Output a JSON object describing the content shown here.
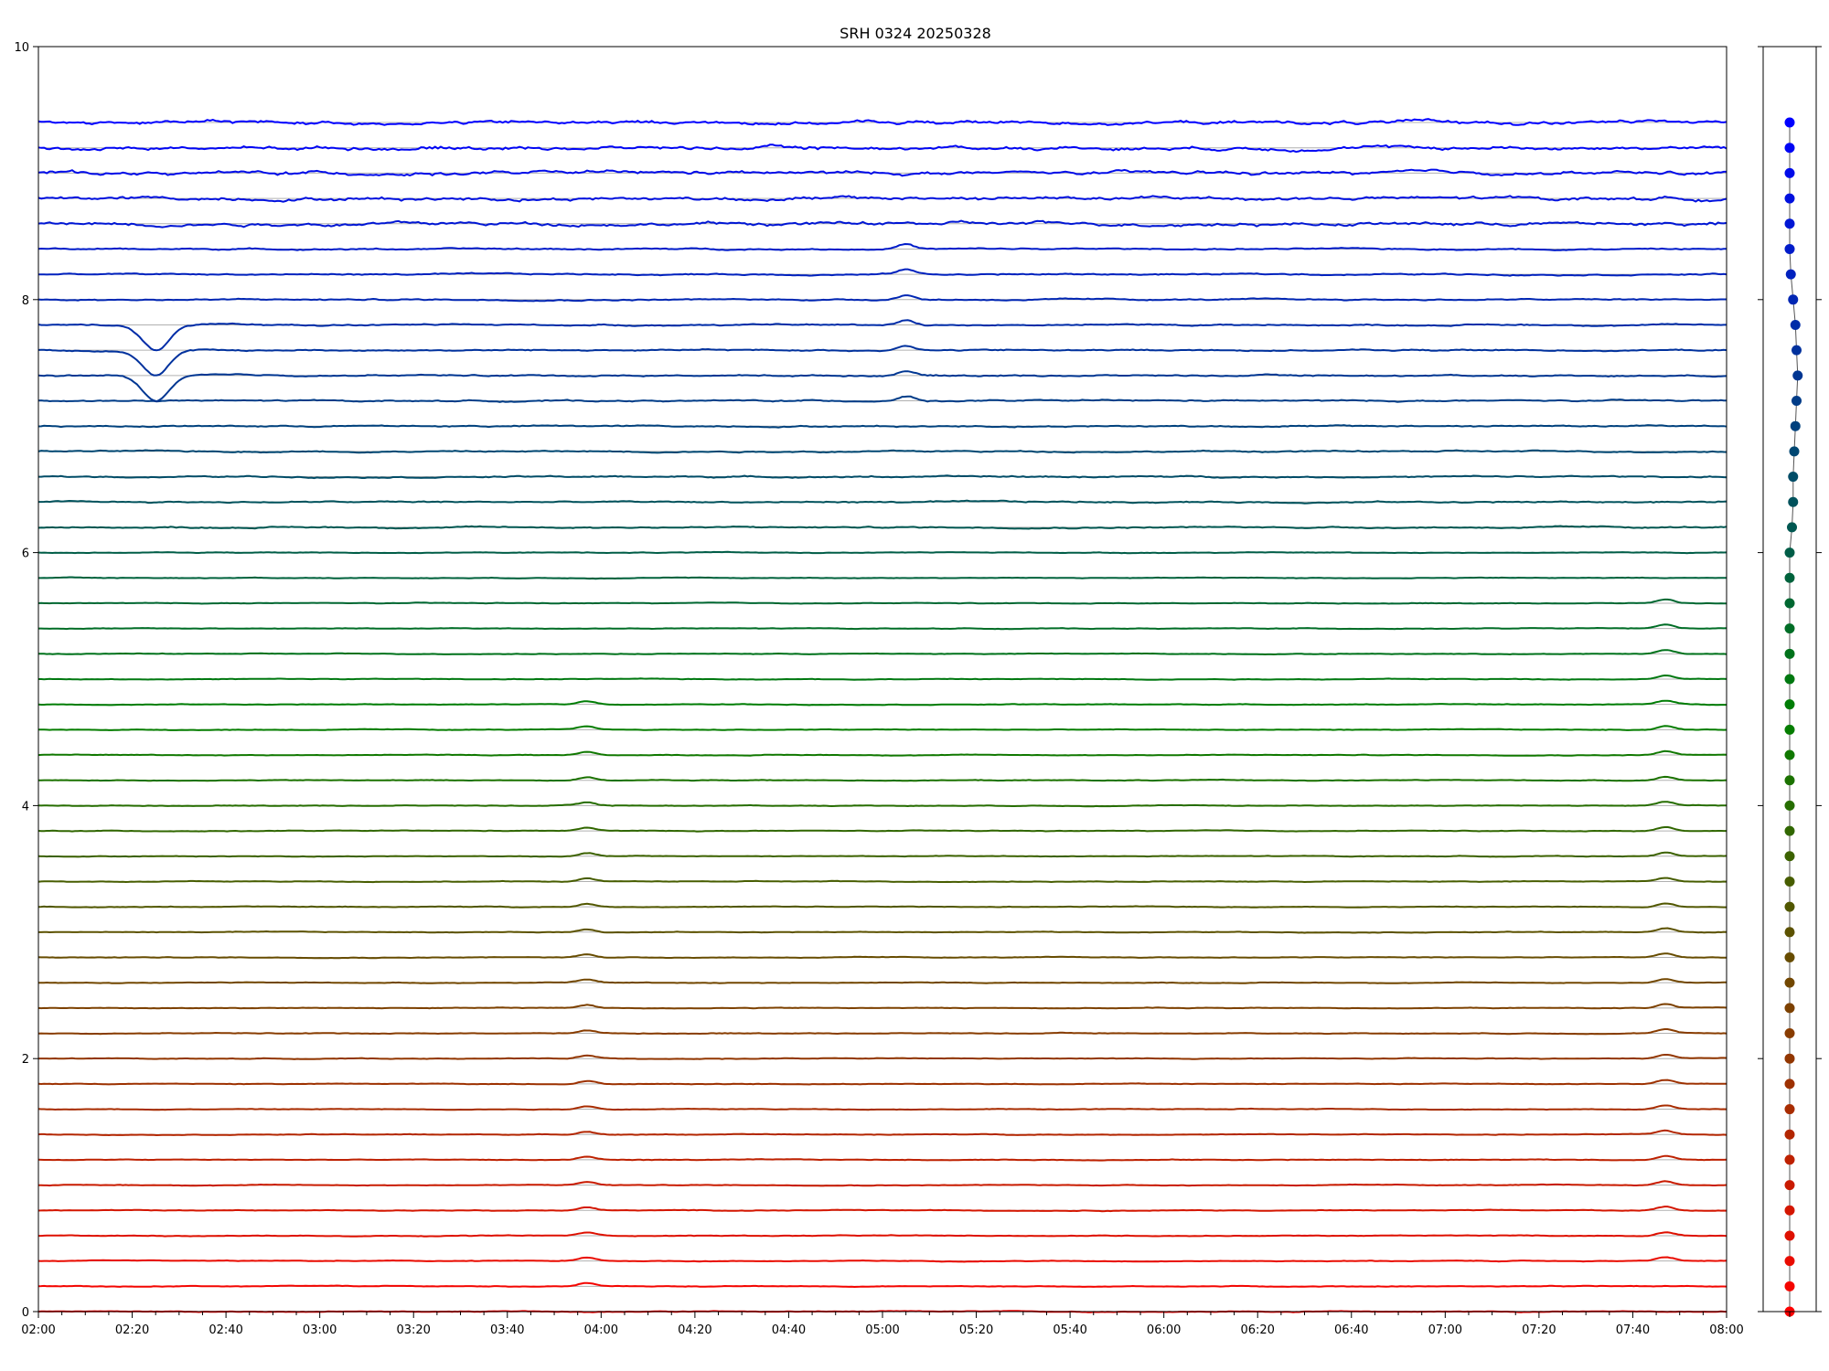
{
  "chart_data": [
    {
      "type": "line",
      "title": "SRH 0324 20250328",
      "xlabel": "",
      "ylabel": "",
      "xlim": [
        "02:00",
        "08:00"
      ],
      "ylim": [
        0,
        10
      ],
      "grid": "horizontal baselines",
      "x_ticks": [
        "02:00",
        "02:20",
        "02:40",
        "03:00",
        "03:20",
        "03:40",
        "04:00",
        "04:20",
        "04:40",
        "05:00",
        "05:20",
        "05:40",
        "06:00",
        "06:20",
        "06:40",
        "07:00",
        "07:20",
        "07:40",
        "08:00"
      ],
      "y_ticks": [
        "0",
        "2",
        "4",
        "6",
        "8",
        "10"
      ],
      "trace_count": 48,
      "trace_spacing": 0.2,
      "trace_color_low": "#ff0000",
      "trace_color_mid": "#008000",
      "trace_color_high": "#0000ff",
      "features": [
        {
          "time": "03:57",
          "traces_from": 1,
          "traces_to": 24,
          "amplitude": 0.025
        },
        {
          "time": "05:05",
          "traces_from": 36,
          "traces_to": 42,
          "amplitude": 0.04
        },
        {
          "time": "07:47",
          "traces_from": 2,
          "traces_to": 28,
          "amplitude": 0.03
        },
        {
          "time": "02:25",
          "traces_from": 37,
          "traces_to": 39,
          "amplitude": -0.2
        }
      ]
    },
    {
      "type": "scatter",
      "title": "",
      "ylim": [
        0,
        10
      ],
      "points_y": [
        0.0,
        0.2,
        0.4,
        0.6,
        0.8,
        1.0,
        1.2,
        1.4,
        1.6,
        1.8,
        2.0,
        2.2,
        2.4,
        2.6,
        2.8,
        3.0,
        3.2,
        3.4,
        3.6,
        3.8,
        4.0,
        4.2,
        4.4,
        4.6,
        4.8,
        5.0,
        5.2,
        5.4,
        5.6,
        5.8,
        6.0,
        6.2,
        6.4,
        6.6,
        6.8,
        7.0,
        7.2,
        7.4,
        7.6,
        7.8,
        8.0,
        8.2,
        8.4,
        8.6,
        8.8,
        9.0,
        9.2,
        9.4
      ],
      "points_x": [
        0,
        0,
        0,
        0,
        0,
        0,
        0,
        0,
        0,
        0,
        0,
        0,
        0,
        0,
        0,
        0,
        0,
        0,
        0,
        0,
        0,
        0,
        0,
        0,
        0,
        0,
        0,
        0,
        0,
        0,
        0,
        0.1,
        0.15,
        0.15,
        0.2,
        0.25,
        0.3,
        0.35,
        0.3,
        0.25,
        0.15,
        0.05,
        0,
        0,
        0,
        0,
        0,
        0
      ]
    }
  ]
}
